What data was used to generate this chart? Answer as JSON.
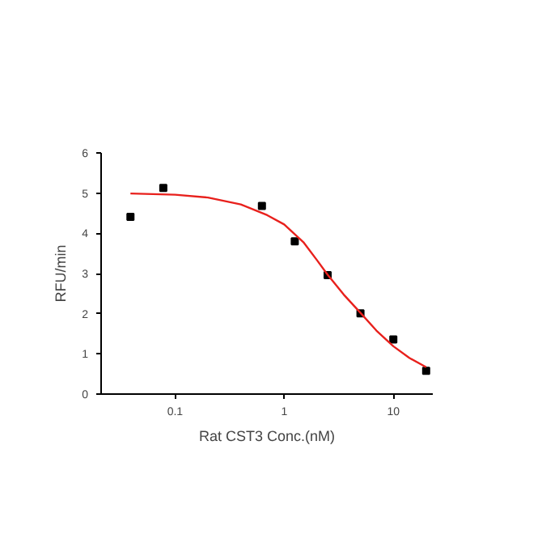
{
  "chart_data": {
    "type": "scatter",
    "xlabel": "Rat CST3 Conc.(nM)",
    "ylabel": "RFU/min",
    "log": "x",
    "xlim": [
      0.021,
      23
    ],
    "xticks": [
      0.1,
      1,
      10
    ],
    "ylim": [
      0,
      6
    ],
    "yticks": [
      0,
      1,
      2,
      3,
      4,
      5,
      6
    ],
    "grid": false,
    "series": [
      {
        "marker": "square",
        "color": "#000000",
        "x": [
          0.039,
          0.078,
          0.625,
          1.25,
          2.5,
          5,
          10,
          20
        ],
        "values": [
          4.41,
          5.13,
          4.68,
          3.8,
          2.96,
          2.01,
          1.36,
          0.58
        ]
      },
      {
        "type": "line",
        "color": "#e8201c",
        "line_style": "solid",
        "x": [
          0.039,
          0.1,
          0.2,
          0.4,
          0.7,
          1,
          1.5,
          2,
          2.5,
          3.5,
          5,
          7,
          10,
          14,
          20
        ],
        "values": [
          4.99,
          4.96,
          4.89,
          4.72,
          4.45,
          4.22,
          3.78,
          3.33,
          2.97,
          2.48,
          2.02,
          1.58,
          1.19,
          0.9,
          0.67
        ]
      }
    ]
  }
}
